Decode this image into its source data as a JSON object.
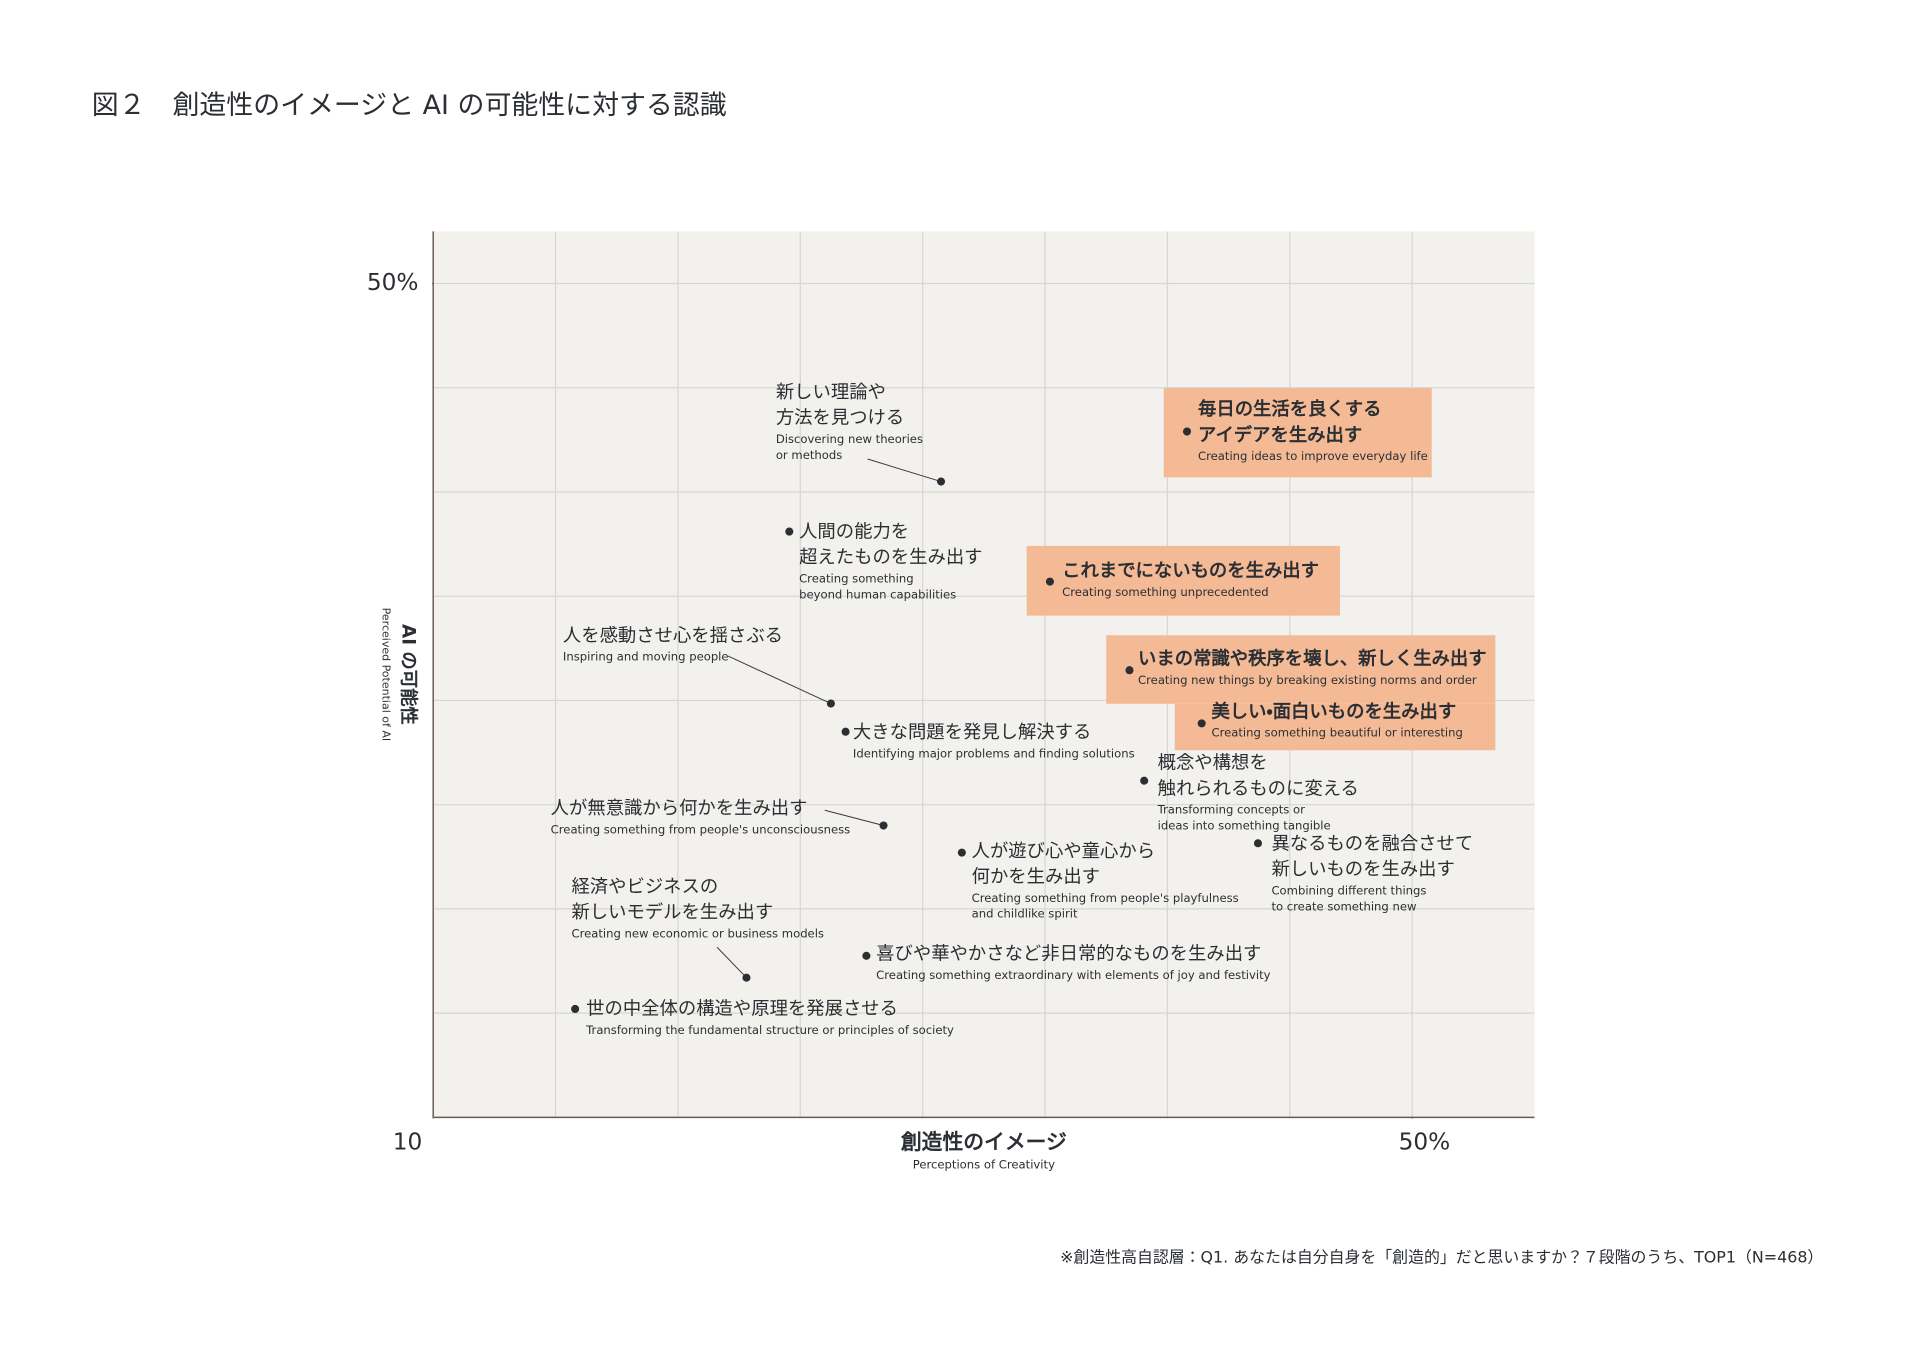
{
  "title": "図２　創造性のイメージと AI の可能性に対する認識",
  "chart_data": {
    "type": "scatter",
    "x_label": "創造性のイメージ",
    "x_sublabel": "Perceptions of Creativity",
    "y_label": "AI の可能性",
    "y_sublabel": "Perceived Potential of AI",
    "xlim": [
      10,
      55
    ],
    "ylim": [
      10,
      52.5
    ],
    "xticks": [
      10,
      {
        "value": 50,
        "label": "50%"
      }
    ],
    "yticks": [
      {
        "value": 50,
        "label": "50%"
      }
    ],
    "xgrid": [
      15,
      20,
      25,
      30,
      35,
      40,
      45,
      50
    ],
    "ygrid": [
      15,
      20,
      25,
      30,
      35,
      40,
      45,
      50
    ],
    "grid": true,
    "color": "#2b2f33",
    "highlight_color": "#f4ba96",
    "points": [
      {
        "x": 30.75,
        "y": 40.5,
        "ja": [
          "新しい理論や",
          "方法を見つける"
        ],
        "en": [
          "Discovering new theories",
          "or methods"
        ],
        "highlight": false
      },
      {
        "x": 24.55,
        "y": 38.1,
        "ja": [
          "人間の能力を",
          "超えたものを生み出す"
        ],
        "en": [
          "Creating something",
          "beyond human capabilities"
        ],
        "highlight": false
      },
      {
        "x": 26.25,
        "y": 29.85,
        "ja": [
          "人を感動させ心を揺さぶる"
        ],
        "en": [
          "Inspiring and moving people"
        ],
        "highlight": false
      },
      {
        "x": 26.85,
        "y": 28.5,
        "ja": [
          "大きな問題を発見し解決する"
        ],
        "en": [
          "Identifying major problems and finding solutions"
        ],
        "highlight": false
      },
      {
        "x": 28.4,
        "y": 24.0,
        "ja": [
          "人が無意識から何かを生み出す"
        ],
        "en": [
          "Creating something from people's unconsciousness"
        ],
        "highlight": false
      },
      {
        "x": 22.8,
        "y": 16.7,
        "ja": [
          "経済やビジネスの",
          "新しいモデルを生み出す"
        ],
        "en": [
          "Creating new economic or business models"
        ],
        "highlight": false
      },
      {
        "x": 15.8,
        "y": 15.2,
        "ja": [
          "世の中全体の構造や原理を発展させる"
        ],
        "en": [
          "Transforming the fundamental structure or principles of society"
        ],
        "highlight": false
      },
      {
        "x": 27.7,
        "y": 17.75,
        "ja": [
          "喜びや華やかさなど非日常的なものを生み出す"
        ],
        "en": [
          "Creating something extraordinary with elements of joy and festivity"
        ],
        "highlight": false
      },
      {
        "x": 31.6,
        "y": 22.7,
        "ja": [
          "人が遊び心や童心から",
          "何かを生み出す"
        ],
        "en": [
          "Creating something from people's playfulness",
          "and childlike spirit"
        ],
        "highlight": false
      },
      {
        "x": 39.05,
        "y": 26.15,
        "ja": [
          "概念や構想を",
          "触れられるものに変える"
        ],
        "en": [
          "Transforming concepts or",
          "ideas into something tangible"
        ],
        "highlight": false
      },
      {
        "x": 43.7,
        "y": 23.15,
        "ja": [
          "異なるものを融合させて",
          "新しいものを生み出す"
        ],
        "en": [
          "Combining different things",
          "to create something new"
        ],
        "highlight": false
      },
      {
        "x": 41.4,
        "y": 28.9,
        "ja": [
          "美しい・面白いものを生み出す"
        ],
        "en": [
          "Creating something beautiful or interesting"
        ],
        "highlight": true
      },
      {
        "x": 38.45,
        "y": 31.45,
        "ja": [
          "いまの常識や秩序を壊し、新しく生み出す"
        ],
        "en": [
          "Creating new things by breaking existing norms and order"
        ],
        "highlight": true
      },
      {
        "x": 35.2,
        "y": 35.7,
        "ja": [
          "これまでにないものを生み出す"
        ],
        "en": [
          "Creating something unprecedented"
        ],
        "highlight": true
      },
      {
        "x": 40.8,
        "y": 42.9,
        "ja": [
          "毎日の生活を良くする",
          "アイデアを生み出す"
        ],
        "en": [
          "Creating ideas to improve everyday life"
        ],
        "highlight": true
      }
    ]
  },
  "footnote": "※創造性高自認層：Q1. あなたは自分自身を「創造的」だと思いますか？７段階のうち、TOP1（N=468）"
}
